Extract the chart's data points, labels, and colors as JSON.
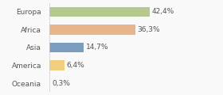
{
  "categories": [
    "Europa",
    "Africa",
    "Asia",
    "America",
    "Oceania"
  ],
  "values": [
    42.4,
    36.3,
    14.7,
    6.4,
    0.3
  ],
  "labels": [
    "42,4%",
    "36,3%",
    "14,7%",
    "6,4%",
    "0,3%"
  ],
  "colors": [
    "#b5c98e",
    "#e8b48a",
    "#7b9bbf",
    "#f0d080",
    "#f08080"
  ],
  "background_color": "#f9f9f9",
  "label_fontsize": 6.5,
  "tick_fontsize": 6.5,
  "xlim": [
    0,
    62
  ],
  "bar_height": 0.55
}
